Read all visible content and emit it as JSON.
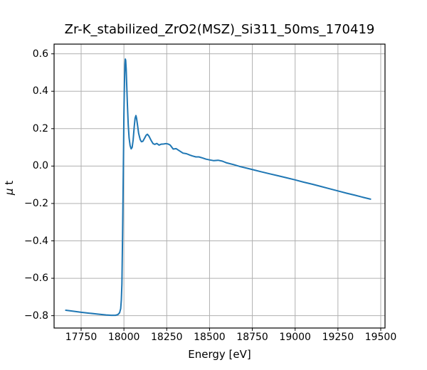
{
  "chart_data": {
    "type": "line",
    "title": "Zr-K_stabilized_ZrO2(MSZ)_Si311_50ms_170419",
    "xlabel": "Energy [eV]",
    "ylabel": "μ t",
    "ylabel_parts": [
      "μ",
      " t"
    ],
    "xlim": [
      17592,
      19525
    ],
    "ylim": [
      -0.866,
      0.652
    ],
    "x_ticks": [
      17750,
      18000,
      18250,
      18500,
      18750,
      19000,
      19250,
      19500
    ],
    "x_tick_labels": [
      "17750",
      "18000",
      "18250",
      "18500",
      "18750",
      "19000",
      "19250",
      "19500"
    ],
    "y_ticks": [
      0.6,
      0.4,
      0.2,
      0.0,
      -0.2,
      -0.4,
      -0.6,
      -0.8
    ],
    "y_tick_labels": [
      "0.6",
      "0.4",
      "0.2",
      "0.0",
      "−0.2",
      "−0.4",
      "−0.6",
      "−0.8"
    ],
    "grid": true,
    "legend": false,
    "colors": {
      "line": "#1f77b4",
      "grid": "#b0b0b0",
      "spine": "#000000",
      "background": "#ffffff",
      "text": "#000000"
    },
    "series": [
      {
        "name": "mu_t_vs_energy",
        "color": "#1f77b4",
        "points": [
          [
            17660,
            -0.771
          ],
          [
            17700,
            -0.776
          ],
          [
            17750,
            -0.782
          ],
          [
            17800,
            -0.787
          ],
          [
            17850,
            -0.792
          ],
          [
            17895,
            -0.796
          ],
          [
            17925,
            -0.798
          ],
          [
            17950,
            -0.798
          ],
          [
            17965,
            -0.794
          ],
          [
            17975,
            -0.784
          ],
          [
            17981,
            -0.762
          ],
          [
            17985,
            -0.715
          ],
          [
            17988,
            -0.63
          ],
          [
            17990,
            -0.52
          ],
          [
            17992,
            -0.38
          ],
          [
            17994,
            -0.22
          ],
          [
            17996,
            -0.05
          ],
          [
            17998,
            0.12
          ],
          [
            18000,
            0.27
          ],
          [
            18002,
            0.39
          ],
          [
            18004,
            0.48
          ],
          [
            18006,
            0.545
          ],
          [
            18008,
            0.572
          ],
          [
            18010,
            0.565
          ],
          [
            18013,
            0.52
          ],
          [
            18016,
            0.44
          ],
          [
            18020,
            0.33
          ],
          [
            18025,
            0.22
          ],
          [
            18030,
            0.15
          ],
          [
            18036,
            0.11
          ],
          [
            18042,
            0.092
          ],
          [
            18048,
            0.1
          ],
          [
            18054,
            0.14
          ],
          [
            18060,
            0.21
          ],
          [
            18065,
            0.255
          ],
          [
            18070,
            0.27
          ],
          [
            18074,
            0.255
          ],
          [
            18079,
            0.22
          ],
          [
            18086,
            0.175
          ],
          [
            18095,
            0.142
          ],
          [
            18102,
            0.13
          ],
          [
            18110,
            0.132
          ],
          [
            18120,
            0.148
          ],
          [
            18130,
            0.165
          ],
          [
            18137,
            0.17
          ],
          [
            18146,
            0.16
          ],
          [
            18158,
            0.138
          ],
          [
            18170,
            0.12
          ],
          [
            18180,
            0.116
          ],
          [
            18192,
            0.121
          ],
          [
            18205,
            0.112
          ],
          [
            18218,
            0.117
          ],
          [
            18232,
            0.118
          ],
          [
            18245,
            0.12
          ],
          [
            18258,
            0.118
          ],
          [
            18270,
            0.112
          ],
          [
            18288,
            0.091
          ],
          [
            18305,
            0.093
          ],
          [
            18325,
            0.081
          ],
          [
            18345,
            0.069
          ],
          [
            18365,
            0.066
          ],
          [
            18385,
            0.059
          ],
          [
            18400,
            0.054
          ],
          [
            18420,
            0.049
          ],
          [
            18438,
            0.049
          ],
          [
            18460,
            0.043
          ],
          [
            18480,
            0.037
          ],
          [
            18500,
            0.033
          ],
          [
            18525,
            0.029
          ],
          [
            18550,
            0.031
          ],
          [
            18575,
            0.026
          ],
          [
            18600,
            0.017
          ],
          [
            18640,
            0.008
          ],
          [
            18680,
            -0.003
          ],
          [
            18720,
            -0.012
          ],
          [
            18760,
            -0.021
          ],
          [
            18800,
            -0.03
          ],
          [
            18850,
            -0.041
          ],
          [
            18900,
            -0.052
          ],
          [
            18950,
            -0.063
          ],
          [
            19000,
            -0.074
          ],
          [
            19050,
            -0.086
          ],
          [
            19100,
            -0.097
          ],
          [
            19150,
            -0.109
          ],
          [
            19200,
            -0.121
          ],
          [
            19250,
            -0.133
          ],
          [
            19300,
            -0.145
          ],
          [
            19350,
            -0.156
          ],
          [
            19400,
            -0.168
          ],
          [
            19440,
            -0.177
          ]
        ]
      }
    ]
  }
}
